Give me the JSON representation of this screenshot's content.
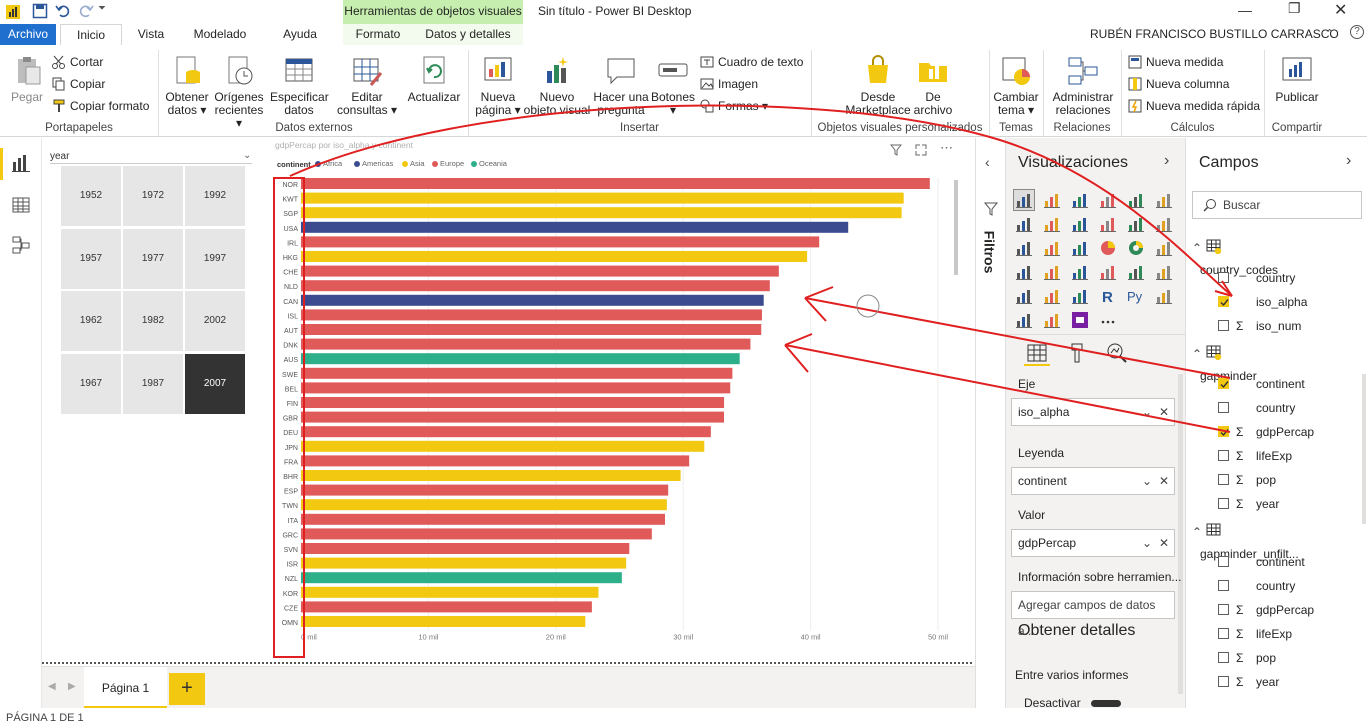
{
  "window": {
    "title": "Sin título - Power BI Desktop",
    "context_tab_header": "Herramientas de objetos visuales",
    "user": "RUBÉN FRANCISCO BUSTILLO CARRASCO"
  },
  "tabs": [
    "Archivo",
    "Inicio",
    "Vista",
    "Modelado",
    "Ayuda",
    "Formato",
    "Datos y detalles"
  ],
  "ribbon": {
    "paste": "Pegar",
    "cut": "Cortar",
    "copy": "Copiar",
    "format_painter": "Copiar formato",
    "clipboard_group": "Portapapeles",
    "get_data": [
      "Obtener",
      "datos"
    ],
    "recent_sources": [
      "Orígenes",
      "recientes"
    ],
    "enter_data": [
      "Especificar",
      "datos"
    ],
    "edit_queries": [
      "Editar",
      "consultas"
    ],
    "refresh": "Actualizar",
    "external_group": "Datos externos",
    "new_page": [
      "Nueva",
      "página"
    ],
    "new_visual": [
      "Nuevo",
      "objeto visual"
    ],
    "ask_question": [
      "Hacer una",
      "pregunta"
    ],
    "buttons": "Botones",
    "textbox": "Cuadro de texto",
    "image": "Imagen",
    "shapes": "Formas",
    "insert_group": "Insertar",
    "marketplace": [
      "Desde",
      "Marketplace"
    ],
    "from_file": [
      "De",
      "archivo"
    ],
    "custom_visuals_group": "Objetos visuales personalizados",
    "switch_theme": [
      "Cambiar",
      "tema"
    ],
    "themes_group": "Temas",
    "manage_rel": [
      "Administrar",
      "relaciones"
    ],
    "relations_group": "Relaciones",
    "new_measure": "Nueva medida",
    "new_column": "Nueva columna",
    "quick_measure": "Nueva medida rápida",
    "calc_group": "Cálculos",
    "publish": "Publicar",
    "share_group": "Compartir"
  },
  "slicer": {
    "title": "year",
    "years": [
      "1952",
      "1972",
      "1992",
      "1957",
      "1977",
      "1997",
      "1962",
      "1982",
      "2002",
      "1967",
      "1987",
      "2007"
    ],
    "selected": "2007"
  },
  "chart_data": {
    "type": "bar",
    "title": "gdpPercap por iso_alpha y continent",
    "legend_title": "continent",
    "legend": [
      {
        "name": "Africa",
        "color": "#3c4a8f"
      },
      {
        "name": "Americas",
        "color": "#3c4a8f"
      },
      {
        "name": "Asia",
        "color": "#f2c811"
      },
      {
        "name": "Europe",
        "color": "#e05a5a"
      },
      {
        "name": "Oceania",
        "color": "#2db08a"
      }
    ],
    "categories": [
      "NOR",
      "KWT",
      "SGP",
      "USA",
      "IRL",
      "HKG",
      "CHE",
      "NLD",
      "CAN",
      "ISL",
      "AUT",
      "DNK",
      "AUS",
      "SWE",
      "BEL",
      "FIN",
      "GBR",
      "DEU",
      "JPN",
      "FRA",
      "BHR",
      "ESP",
      "TWN",
      "ITA",
      "GRC",
      "SVN",
      "ISR",
      "NZL",
      "KOR",
      "CZE",
      "OMN"
    ],
    "continents": [
      "Europe",
      "Asia",
      "Asia",
      "Americas",
      "Europe",
      "Asia",
      "Europe",
      "Europe",
      "Americas",
      "Europe",
      "Europe",
      "Europe",
      "Oceania",
      "Europe",
      "Europe",
      "Europe",
      "Europe",
      "Europe",
      "Asia",
      "Europe",
      "Asia",
      "Europe",
      "Asia",
      "Europe",
      "Europe",
      "Europe",
      "Asia",
      "Oceania",
      "Asia",
      "Europe",
      "Asia"
    ],
    "values": [
      49357,
      47307,
      47143,
      42952,
      40676,
      39725,
      37506,
      36798,
      36319,
      36181,
      36126,
      35278,
      34435,
      33860,
      33693,
      33207,
      33203,
      32170,
      31656,
      30470,
      29796,
      28821,
      28718,
      28570,
      27538,
      25768,
      25523,
      25185,
      23348,
      22833,
      22316
    ],
    "xticks": [
      "0 mil",
      "10 mil",
      "20 mil",
      "30 mil",
      "40 mil",
      "50 mil"
    ],
    "xlim": [
      0,
      50000
    ]
  },
  "filters_label": "Filtros",
  "viz_pane": {
    "title": "Visualizaciones",
    "axis_label": "Eje",
    "axis_value": "iso_alpha",
    "legend_label": "Leyenda",
    "legend_value": "continent",
    "value_label": "Valor",
    "value_value": "gdpPercap",
    "tooltip_label": "Información sobre herramien...",
    "tooltip_placeholder": "Agregar campos de datos a...",
    "drill_title": "Obtener detalles",
    "cross_report": "Entre varios informes",
    "toggle_label": "Desactivar"
  },
  "fields_pane": {
    "title": "Campos",
    "search_placeholder": "Buscar",
    "tables": [
      {
        "name": "country_codes",
        "fields": [
          {
            "name": "country",
            "sigma": false,
            "checked": false
          },
          {
            "name": "iso_alpha",
            "sigma": false,
            "checked": true
          },
          {
            "name": "iso_num",
            "sigma": true,
            "checked": false
          }
        ]
      },
      {
        "name": "gapminder",
        "fields": [
          {
            "name": "continent",
            "sigma": false,
            "checked": true
          },
          {
            "name": "country",
            "sigma": false,
            "checked": false
          },
          {
            "name": "gdpPercap",
            "sigma": true,
            "checked": true
          },
          {
            "name": "lifeExp",
            "sigma": true,
            "checked": false
          },
          {
            "name": "pop",
            "sigma": true,
            "checked": false
          },
          {
            "name": "year",
            "sigma": true,
            "checked": false
          }
        ]
      },
      {
        "name": "gapminder_unfilt...",
        "fields": [
          {
            "name": "continent",
            "sigma": false,
            "checked": false
          },
          {
            "name": "country",
            "sigma": false,
            "checked": false
          },
          {
            "name": "gdpPercap",
            "sigma": true,
            "checked": false
          },
          {
            "name": "lifeExp",
            "sigma": true,
            "checked": false
          },
          {
            "name": "pop",
            "sigma": true,
            "checked": false
          },
          {
            "name": "year",
            "sigma": true,
            "checked": false
          }
        ]
      }
    ]
  },
  "page_tab": "Página 1",
  "status": "PÁGINA 1 DE 1",
  "colors": {
    "accent": "#f2c811",
    "archivo_tab": "#1f6fcf",
    "context_tab": "#c6efaf",
    "annotation": "#e02020"
  }
}
